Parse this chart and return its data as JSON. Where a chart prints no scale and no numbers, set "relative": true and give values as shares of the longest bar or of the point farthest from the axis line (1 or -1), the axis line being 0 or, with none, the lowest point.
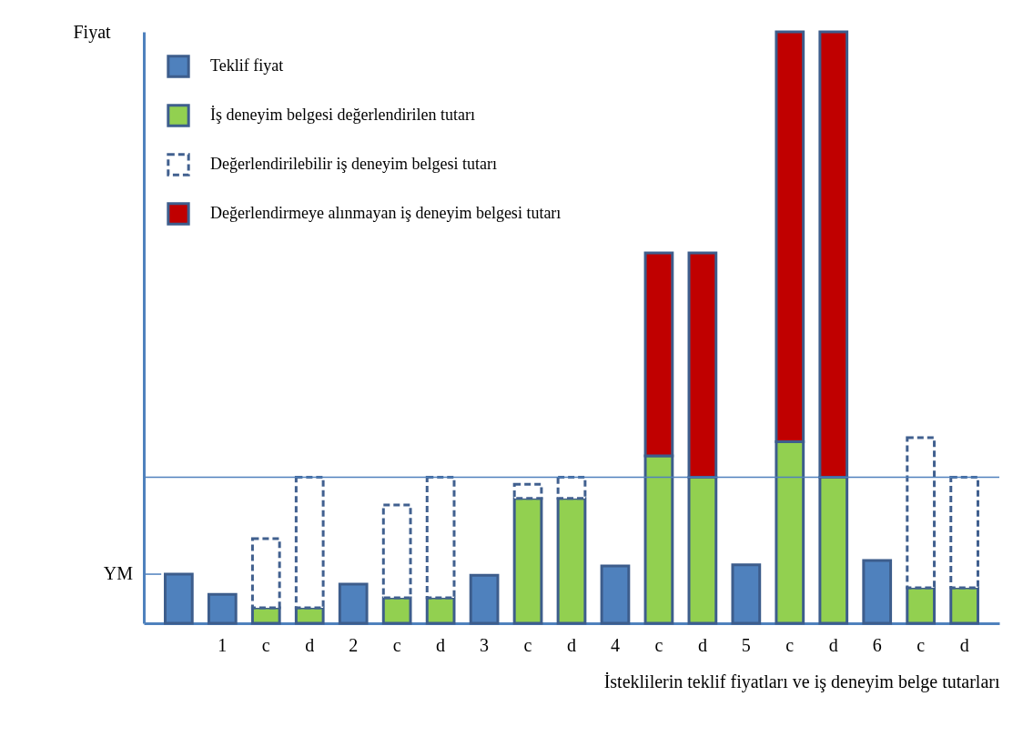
{
  "chart_data": {
    "type": "bar",
    "relative": true,
    "stacked": true,
    "ylabel": "Fiyat",
    "xlabel": "İsteklilerin teklif fiyatları ve iş deneyim belge tutarları",
    "legend": "top left",
    "categories": [
      null,
      "1",
      "c",
      "d",
      "2",
      "c",
      "d",
      "3",
      "c",
      "d",
      "4",
      "c",
      "d",
      "5",
      "c",
      "d",
      "6",
      "c",
      "d"
    ],
    "series": [
      {
        "name": "Teklif fiyat",
        "color": "#4f81bd",
        "values": [
          0.083,
          0.049,
          null,
          null,
          0.066,
          null,
          null,
          0.081,
          null,
          null,
          0.097,
          null,
          null,
          0.099,
          null,
          null,
          0.106,
          null,
          null
        ]
      },
      {
        "name": "İş deneyim belgesi değerlendirilen tutarı",
        "color": "#92d050",
        "values": [
          null,
          null,
          0.026,
          0.026,
          null,
          0.043,
          0.043,
          null,
          0.211,
          0.211,
          null,
          0.283,
          0.247,
          null,
          0.307,
          0.247,
          null,
          0.06,
          0.06
        ]
      },
      {
        "name": "Değerlendirilebilir iş deneyim belgesi tutarı",
        "color": "#41608f",
        "line_style": "dashed",
        "values": [
          null,
          null,
          0.117,
          0.221,
          null,
          0.157,
          0.204,
          null,
          0.024,
          0.036,
          null,
          null,
          null,
          null,
          null,
          null,
          null,
          0.254,
          0.187
        ]
      },
      {
        "name": "Değerlendirmeye alınmayan  iş deneyim belgesi tutarı",
        "color": "#c00000",
        "values": [
          null,
          null,
          null,
          null,
          null,
          null,
          null,
          null,
          null,
          null,
          null,
          0.343,
          0.379,
          null,
          0.693,
          0.753,
          null,
          null,
          null
        ]
      }
    ],
    "ref_lines": [
      {
        "axis": "y",
        "value": 0.247
      },
      {
        "axis": "y",
        "value": 0.083,
        "label": "YM"
      }
    ]
  }
}
